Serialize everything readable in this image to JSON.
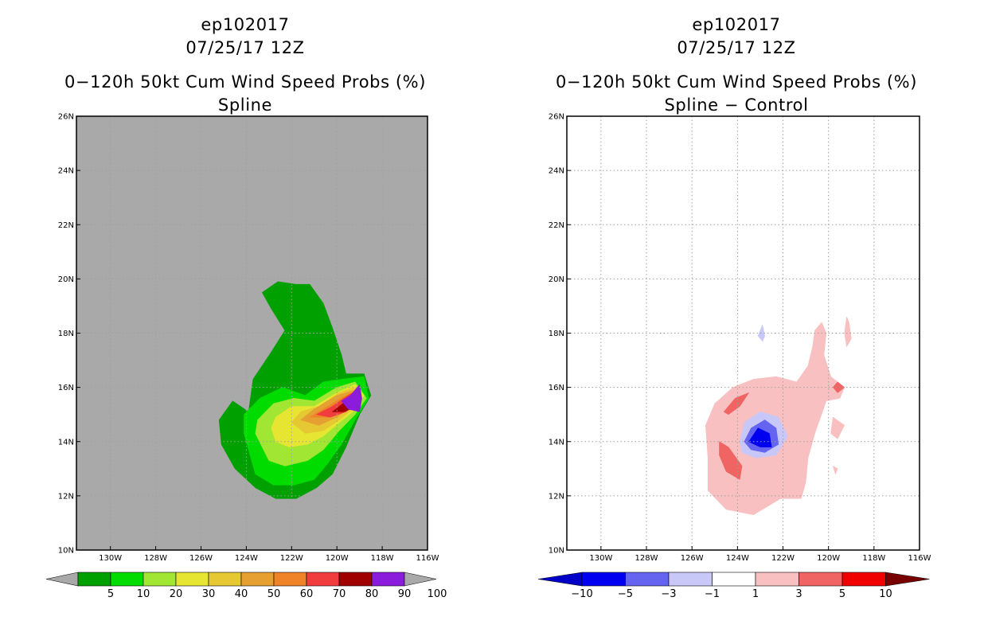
{
  "chart_data": [
    {
      "type": "contour",
      "panel": "left",
      "title_lines": [
        "ep102017",
        "07/25/17 12Z",
        "0−120h 50kt Cum Wind Speed Probs (%)",
        "Spline"
      ],
      "xlabel": "",
      "ylabel": "",
      "xlim": [
        -131.5,
        -116
      ],
      "ylim": [
        10,
        26
      ],
      "x_ticks": [
        -130,
        -128,
        -126,
        -124,
        -122,
        -120,
        -118,
        -116
      ],
      "x_tick_labels": [
        "130W",
        "128W",
        "126W",
        "124W",
        "122W",
        "120W",
        "118W",
        "116W"
      ],
      "y_ticks": [
        10,
        12,
        14,
        16,
        18,
        20,
        22,
        24,
        26
      ],
      "y_tick_labels": [
        "10N",
        "12N",
        "14N",
        "16N",
        "18N",
        "20N",
        "22N",
        "24N",
        "26N"
      ],
      "background_color": "#a9a9a9",
      "grid": true,
      "colorbar": {
        "labels": [
          "5",
          "10",
          "20",
          "30",
          "40",
          "50",
          "60",
          "70",
          "80",
          "90",
          "100"
        ],
        "colors": [
          "#00a000",
          "#00dc00",
          "#a0e632",
          "#e6e632",
          "#e6c832",
          "#e6a032",
          "#f08228",
          "#f03c3c",
          "#a00000",
          "#8c1cdc"
        ],
        "end_color": "#a9a9a9"
      },
      "contours": [
        {
          "level": 5,
          "color": "#00a000",
          "poly": [
            [
              -123.9,
              15.1
            ],
            [
              -123.7,
              16.3
            ],
            [
              -122.9,
              17.3
            ],
            [
              -122.3,
              18.1
            ],
            [
              -122.9,
              18.9
            ],
            [
              -123.3,
              19.5
            ],
            [
              -122.6,
              19.9
            ],
            [
              -121.8,
              19.8
            ],
            [
              -121.2,
              19.8
            ],
            [
              -120.6,
              19.1
            ],
            [
              -120.2,
              18.2
            ],
            [
              -119.8,
              17.2
            ],
            [
              -119.6,
              16.5
            ],
            [
              -118.8,
              16.5
            ],
            [
              -118.5,
              15.7
            ],
            [
              -119.0,
              15.0
            ],
            [
              -119.6,
              13.8
            ],
            [
              -120.2,
              12.8
            ],
            [
              -120.9,
              12.3
            ],
            [
              -121.8,
              11.9
            ],
            [
              -122.7,
              11.9
            ],
            [
              -123.6,
              12.3
            ],
            [
              -124.5,
              13.0
            ],
            [
              -125.1,
              13.9
            ],
            [
              -125.2,
              14.8
            ],
            [
              -124.6,
              15.5
            ]
          ]
        },
        {
          "level": 10,
          "color": "#00dc00",
          "poly": [
            [
              -124.1,
              14.3
            ],
            [
              -124.1,
              15.0
            ],
            [
              -123.4,
              15.6
            ],
            [
              -122.4,
              16.0
            ],
            [
              -121.4,
              15.7
            ],
            [
              -120.6,
              16.2
            ],
            [
              -119.8,
              16.3
            ],
            [
              -118.8,
              16.4
            ],
            [
              -118.6,
              15.6
            ],
            [
              -119.2,
              14.8
            ],
            [
              -119.8,
              13.9
            ],
            [
              -120.4,
              13.2
            ],
            [
              -121.0,
              12.6
            ],
            [
              -121.9,
              12.4
            ],
            [
              -122.8,
              12.4
            ],
            [
              -123.6,
              12.8
            ]
          ]
        },
        {
          "level": 20,
          "color": "#a0e632",
          "poly": [
            [
              -123.6,
              14.3
            ],
            [
              -123.5,
              14.8
            ],
            [
              -122.8,
              15.4
            ],
            [
              -121.9,
              15.6
            ],
            [
              -121.0,
              15.5
            ],
            [
              -120.0,
              16.0
            ],
            [
              -119.2,
              16.2
            ],
            [
              -118.7,
              15.6
            ],
            [
              -119.2,
              15.0
            ],
            [
              -119.9,
              14.4
            ],
            [
              -120.6,
              13.7
            ],
            [
              -121.3,
              13.3
            ],
            [
              -122.3,
              13.1
            ],
            [
              -123.0,
              13.3
            ]
          ]
        },
        {
          "level": 30,
          "color": "#e6e632",
          "poly": [
            [
              -122.9,
              14.5
            ],
            [
              -122.7,
              14.9
            ],
            [
              -122.0,
              15.3
            ],
            [
              -121.0,
              15.3
            ],
            [
              -120.0,
              15.8
            ],
            [
              -119.2,
              16.1
            ],
            [
              -118.8,
              15.7
            ],
            [
              -119.3,
              15.1
            ],
            [
              -119.9,
              14.7
            ],
            [
              -120.6,
              14.2
            ],
            [
              -121.3,
              13.9
            ],
            [
              -122.1,
              13.8
            ],
            [
              -122.7,
              14.0
            ]
          ]
        },
        {
          "level": 40,
          "color": "#e6c832",
          "poly": [
            [
              -122.0,
              14.7
            ],
            [
              -121.6,
              15.1
            ],
            [
              -120.8,
              15.3
            ],
            [
              -119.9,
              15.8
            ],
            [
              -119.2,
              16.0
            ],
            [
              -118.9,
              15.7
            ],
            [
              -119.3,
              15.2
            ],
            [
              -119.9,
              14.8
            ],
            [
              -120.6,
              14.4
            ],
            [
              -121.4,
              14.3
            ]
          ]
        },
        {
          "level": 50,
          "color": "#e6a032",
          "poly": [
            [
              -121.6,
              14.8
            ],
            [
              -121.0,
              15.2
            ],
            [
              -120.0,
              15.7
            ],
            [
              -119.2,
              15.9
            ],
            [
              -119.0,
              15.7
            ],
            [
              -119.4,
              15.3
            ],
            [
              -120.0,
              14.9
            ],
            [
              -120.8,
              14.6
            ]
          ]
        },
        {
          "level": 60,
          "color": "#f08228",
          "poly": [
            [
              -121.2,
              14.9
            ],
            [
              -120.6,
              15.2
            ],
            [
              -119.8,
              15.6
            ],
            [
              -119.1,
              15.9
            ],
            [
              -119.0,
              15.6
            ],
            [
              -119.5,
              15.2
            ],
            [
              -120.3,
              14.9
            ]
          ]
        },
        {
          "level": 70,
          "color": "#f03c3c",
          "poly": [
            [
              -120.9,
              15.0
            ],
            [
              -120.2,
              15.3
            ],
            [
              -119.5,
              15.7
            ],
            [
              -119.1,
              15.9
            ],
            [
              -119.0,
              15.5
            ],
            [
              -119.6,
              15.1
            ],
            [
              -120.3,
              14.9
            ]
          ]
        },
        {
          "level": 80,
          "color": "#a00000",
          "poly": [
            [
              -120.2,
              15.1
            ],
            [
              -119.6,
              15.5
            ],
            [
              -119.1,
              15.8
            ],
            [
              -119.1,
              15.3
            ],
            [
              -119.7,
              15.1
            ]
          ]
        },
        {
          "level": 90,
          "color": "#8c1cdc",
          "poly": [
            [
              -119.8,
              15.5
            ],
            [
              -119.4,
              15.7
            ],
            [
              -119.0,
              16.1
            ],
            [
              -118.9,
              15.6
            ],
            [
              -119.0,
              15.1
            ],
            [
              -119.5,
              15.2
            ]
          ]
        }
      ]
    },
    {
      "type": "contour",
      "panel": "right",
      "title_lines": [
        "ep102017",
        "07/25/17 12Z",
        "0−120h 50kt Cum Wind Speed Probs (%)",
        "Spline − Control"
      ],
      "xlabel": "",
      "ylabel": "",
      "xlim": [
        -131.5,
        -116
      ],
      "ylim": [
        10,
        26
      ],
      "x_ticks": [
        -130,
        -128,
        -126,
        -124,
        -122,
        -120,
        -118,
        -116
      ],
      "x_tick_labels": [
        "130W",
        "128W",
        "126W",
        "124W",
        "122W",
        "120W",
        "118W",
        "116W"
      ],
      "y_ticks": [
        10,
        12,
        14,
        16,
        18,
        20,
        22,
        24,
        26
      ],
      "y_tick_labels": [
        "10N",
        "12N",
        "14N",
        "16N",
        "18N",
        "20N",
        "22N",
        "24N",
        "26N"
      ],
      "background_color": "#ffffff",
      "grid": true,
      "colorbar": {
        "labels": [
          "−10",
          "−5",
          "−3",
          "−1",
          "1",
          "3",
          "5",
          "10"
        ],
        "colors": [
          "#0000c8",
          "#0000f0",
          "#6464f0",
          "#c8c8f8",
          "#ffffff",
          "#f8c0c0",
          "#f06464",
          "#f00000",
          "#780000"
        ]
      },
      "contours": [
        {
          "level": 1,
          "color": "#f8c0c0",
          "poly": [
            [
              -125.3,
              12.2
            ],
            [
              -125.3,
              13.4
            ],
            [
              -125.4,
              14.6
            ],
            [
              -125.0,
              15.4
            ],
            [
              -124.2,
              16.0
            ],
            [
              -123.3,
              16.3
            ],
            [
              -122.3,
              16.4
            ],
            [
              -121.4,
              16.2
            ],
            [
              -120.9,
              16.8
            ],
            [
              -120.7,
              17.5
            ],
            [
              -120.6,
              18.1
            ],
            [
              -120.3,
              18.4
            ],
            [
              -120.1,
              18.0
            ],
            [
              -120.2,
              17.2
            ],
            [
              -119.9,
              16.4
            ],
            [
              -119.3,
              16.0
            ],
            [
              -119.5,
              15.6
            ],
            [
              -120.1,
              15.5
            ],
            [
              -120.6,
              14.3
            ],
            [
              -120.9,
              13.4
            ],
            [
              -121.0,
              12.5
            ],
            [
              -121.2,
              11.9
            ],
            [
              -122.1,
              11.9
            ],
            [
              -123.3,
              11.3
            ],
            [
              -124.5,
              11.5
            ]
          ]
        },
        {
          "level": -1,
          "color": "#c8c8f8",
          "poly": [
            [
              -123.9,
              14.0
            ],
            [
              -123.7,
              14.7
            ],
            [
              -123.0,
              15.1
            ],
            [
              -122.2,
              14.9
            ],
            [
              -121.8,
              14.2
            ],
            [
              -122.3,
              13.5
            ],
            [
              -123.2,
              13.4
            ],
            [
              -123.8,
              13.6
            ]
          ]
        },
        {
          "level": -3,
          "color": "#6464f0",
          "poly": [
            [
              -123.7,
              14.0
            ],
            [
              -123.4,
              14.5
            ],
            [
              -122.8,
              14.8
            ],
            [
              -122.3,
              14.5
            ],
            [
              -122.2,
              13.9
            ],
            [
              -122.8,
              13.6
            ],
            [
              -123.4,
              13.7
            ]
          ]
        },
        {
          "level": -5,
          "color": "#0000f0",
          "poly": [
            [
              -123.5,
              14.0
            ],
            [
              -123.1,
              14.5
            ],
            [
              -122.6,
              14.3
            ],
            [
              -122.5,
              13.8
            ],
            [
              -123.0,
              13.8
            ]
          ]
        },
        {
          "level": 3,
          "color": "#f06464",
          "poly": [
            [
              -124.8,
              13.5
            ],
            [
              -124.5,
              12.9
            ],
            [
              -123.9,
              12.6
            ],
            [
              -123.8,
              13.1
            ],
            [
              -124.4,
              13.8
            ],
            [
              -124.8,
              14.0
            ]
          ]
        },
        {
          "level": 3,
          "color": "#f06464",
          "poly": [
            [
              -124.6,
              15.1
            ],
            [
              -124.1,
              15.6
            ],
            [
              -123.5,
              15.8
            ],
            [
              -123.9,
              15.3
            ],
            [
              -124.4,
              15.0
            ]
          ]
        },
        {
          "level": 3,
          "color": "#f06464",
          "poly": [
            [
              -119.8,
              16.0
            ],
            [
              -119.6,
              16.2
            ],
            [
              -119.3,
              16.0
            ],
            [
              -119.6,
              15.8
            ]
          ]
        },
        {
          "level": -1,
          "color": "#c8c8f8",
          "poly": [
            [
              -123.1,
              17.9
            ],
            [
              -122.9,
              18.3
            ],
            [
              -122.8,
              17.9
            ],
            [
              -122.9,
              17.7
            ]
          ]
        },
        {
          "level": 1,
          "color": "#f8c0c0",
          "poly": [
            [
              -119.8,
              14.9
            ],
            [
              -119.3,
              14.6
            ],
            [
              -119.6,
              14.1
            ],
            [
              -119.9,
              14.3
            ]
          ]
        },
        {
          "level": 1,
          "color": "#f8c0c0",
          "poly": [
            [
              -119.2,
              18.6
            ],
            [
              -119.1,
              18.4
            ],
            [
              -119.0,
              17.8
            ],
            [
              -119.2,
              17.5
            ],
            [
              -119.3,
              18.0
            ]
          ]
        },
        {
          "level": 1,
          "color": "#f8c0c0",
          "poly": [
            [
              -119.8,
              13.1
            ],
            [
              -119.6,
              13.0
            ],
            [
              -119.7,
              12.8
            ]
          ]
        }
      ]
    }
  ]
}
